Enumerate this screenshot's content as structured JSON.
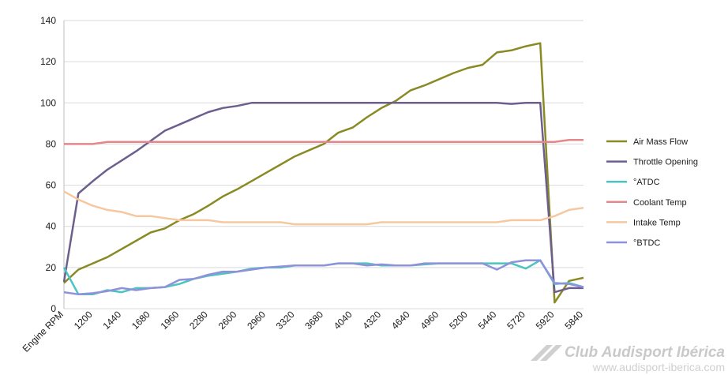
{
  "chart_data": {
    "type": "line",
    "title": "",
    "xlabel": "",
    "ylabel": "",
    "ylim": [
      0,
      140
    ],
    "y_ticks": [
      0,
      20,
      40,
      60,
      80,
      100,
      120,
      140
    ],
    "grid": "horizontal",
    "legend_position": "right",
    "x_tick_labels": [
      "Engine RPM",
      "1200",
      "1440",
      "1680",
      "1960",
      "2280",
      "2600",
      "2960",
      "3320",
      "3680",
      "4040",
      "4320",
      "4640",
      "4960",
      "5200",
      "5440",
      "5720",
      "5920",
      "5840"
    ],
    "series": [
      {
        "name": "Air Mass Flow",
        "color": "#8a8a24",
        "values": [
          12.5,
          19,
          22,
          25,
          29,
          33,
          37,
          39,
          43,
          46,
          50,
          54.5,
          58,
          62,
          66,
          70,
          74,
          77,
          80,
          85.5,
          88,
          93,
          97.5,
          101,
          106,
          108.5,
          111.5,
          114.5,
          117,
          118.5,
          124.5,
          125.5,
          127.5,
          129,
          3,
          13.5,
          15
        ]
      },
      {
        "name": "Throttle Opening",
        "color": "#6c5f8e",
        "values": [
          13,
          56,
          62,
          67.5,
          72,
          76.5,
          81.5,
          86.5,
          89.5,
          92.5,
          95.5,
          97.5,
          98.5,
          100,
          100,
          100,
          100,
          100,
          100,
          100,
          100,
          100,
          100,
          100,
          100,
          100,
          100,
          100,
          100,
          100,
          100,
          99.5,
          100,
          100,
          8,
          10,
          10
        ]
      },
      {
        "name": "°ATDC",
        "color": "#4cc4c0",
        "values": [
          20,
          7,
          7,
          9,
          8,
          10,
          10,
          10.5,
          12,
          14.5,
          16,
          17,
          18,
          19.5,
          20,
          20,
          21,
          21,
          21,
          22,
          22,
          22,
          21,
          21,
          21,
          21.5,
          22,
          22,
          22,
          22,
          22,
          22,
          19.5,
          23.5,
          12,
          12.5,
          10.5
        ]
      },
      {
        "name": "Coolant Temp",
        "color": "#e5868a",
        "values": [
          80,
          80,
          80,
          81,
          81,
          81,
          81,
          81,
          81,
          81,
          81,
          81,
          81,
          81,
          81,
          81,
          81,
          81,
          81,
          81,
          81,
          81,
          81,
          81,
          81,
          81,
          81,
          81,
          81,
          81,
          81,
          81,
          81,
          81,
          81,
          82,
          82
        ]
      },
      {
        "name": "Intake Temp",
        "color": "#f5c8a0",
        "values": [
          57,
          53,
          50,
          48,
          47,
          45,
          45,
          44,
          43,
          43,
          43,
          42,
          42,
          42,
          42,
          42,
          41,
          41,
          41,
          41,
          41,
          41,
          42,
          42,
          42,
          42,
          42,
          42,
          42,
          42,
          42,
          43,
          43,
          43,
          45,
          48,
          49
        ]
      },
      {
        "name": "°BTDC",
        "color": "#8f92da",
        "values": [
          8,
          7,
          7.5,
          8.5,
          10,
          9,
          10,
          10.5,
          14,
          14.5,
          16.5,
          18,
          18,
          19,
          20,
          20.5,
          21,
          21,
          21,
          22,
          22,
          21,
          21.5,
          21,
          21,
          22,
          22,
          22,
          22,
          22,
          19,
          22.5,
          23.5,
          23.5,
          12.5,
          12,
          10.5
        ]
      }
    ]
  },
  "watermark": {
    "line1": "Club Audisport Ibérica",
    "line2": "www.audisport-iberica.com"
  }
}
